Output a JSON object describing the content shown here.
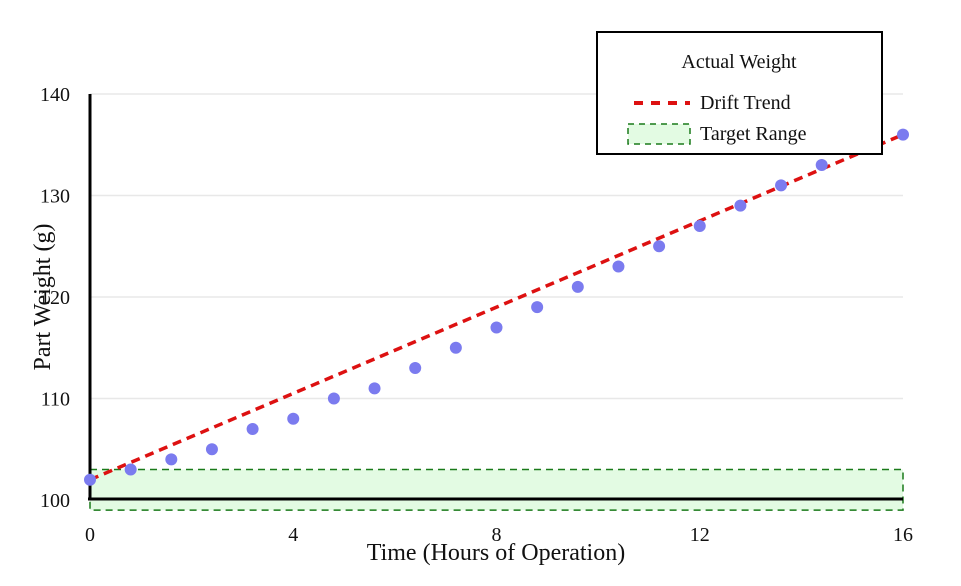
{
  "chart_data": {
    "type": "scatter",
    "xlabel": "Time (Hours of Operation)",
    "ylabel": "Part Weight (g)",
    "xlim": [
      0,
      16
    ],
    "ylim": [
      100,
      140
    ],
    "x_ticks": [
      0,
      4,
      8,
      12,
      16
    ],
    "y_ticks": [
      100,
      110,
      120,
      130,
      140
    ],
    "grid": "horizontal",
    "legend_position": "top-right",
    "series": [
      {
        "name": "Actual Weight",
        "kind": "scatter",
        "color": "#7b7bef",
        "x": [
          0,
          0.8,
          1.6,
          2.4,
          3.2,
          4.0,
          4.8,
          5.6,
          6.4,
          7.2,
          8.0,
          8.8,
          9.6,
          10.4,
          11.2,
          12.0,
          12.8,
          13.6,
          14.4,
          16.0
        ],
        "y": [
          102,
          103,
          104,
          105,
          107,
          108,
          110,
          111,
          113,
          115,
          117,
          119,
          121,
          123,
          125,
          127,
          129,
          131,
          133,
          136
        ]
      },
      {
        "name": "Drift Trend",
        "kind": "line",
        "style": "dashed",
        "color": "#dd1111",
        "x": [
          0,
          16
        ],
        "y": [
          102,
          136
        ]
      },
      {
        "name": "Target Range",
        "kind": "band",
        "style": "dashed",
        "color": "#1a7a1a",
        "fill": "#e3fbe3",
        "x": [
          0,
          16
        ],
        "y_range": [
          99,
          103
        ]
      }
    ]
  }
}
